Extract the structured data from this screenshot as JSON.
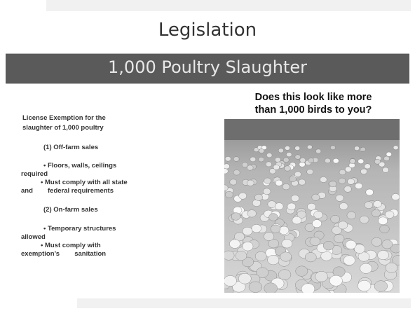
{
  "header": {
    "title": "Legislation",
    "subtitle": "1,000 Poultry Slaughter"
  },
  "body": {
    "lines": [
      "License Exemption for the",
      "slaughter of 1,000 poultry",
      "(1) Off-farm sales",
      "• Floors, walls, ceilings",
      "required",
      "• Must comply with all state",
      "and        federal requirements",
      "(2) On-farm sales",
      "• Temporary structures",
      "allowed",
      "• Must comply with",
      "exemption’s        sanitation"
    ]
  },
  "image": {
    "caption_lines": [
      "Does this look like more",
      "than 1,000 birds to you?"
    ]
  }
}
